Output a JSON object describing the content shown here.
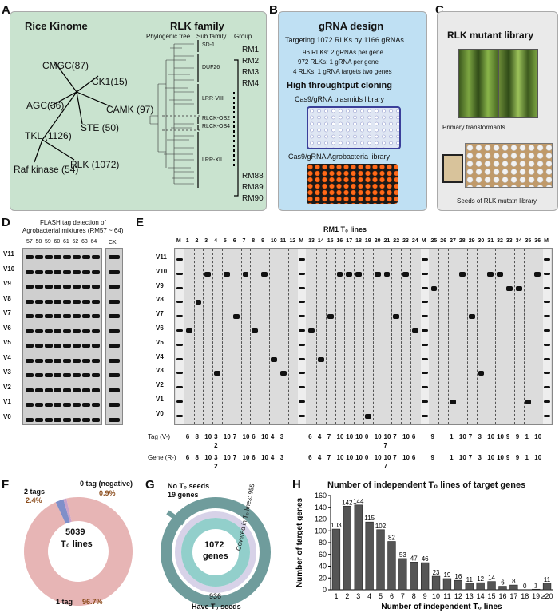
{
  "panel_labels": {
    "a": "A",
    "b": "B",
    "c": "C",
    "d": "D",
    "e": "E",
    "f": "F",
    "g": "G",
    "h": "H"
  },
  "panelA": {
    "title_kinome": "Rice Kinome",
    "title_rlk": "RLK family",
    "tree_labels": [
      "CMGC(87)",
      "AGC(36)",
      "CK1(15)",
      "STE (50)",
      "CAMK (97)",
      "TKL (1126)",
      "Raf kinase (54)",
      "RLK (1072)"
    ],
    "col_headers": [
      "Phylogenic tree",
      "Sub family",
      "Group"
    ],
    "subfamilies": [
      "SD-1",
      "DUF26",
      "LRR-VIII",
      "RLCK-OS2",
      "RLCK-OS4",
      "LRR-XII"
    ],
    "groups_top": [
      "RM1",
      "RM2",
      "RM3",
      "RM4"
    ],
    "groups_bottom": [
      "RM88",
      "RM89",
      "RM90"
    ]
  },
  "panelB": {
    "title": "gRNA design",
    "line1": "Targeting 1072 RLKs by 1166 gRNAs",
    "line2": "96 RLKs: 2 gRNAs per gene",
    "line3": "972 RLKs: 1 gRNA  per gene",
    "line4": "4 RLKs: 1 gRNA  targets two genes",
    "title2": "High throughtput cloning",
    "plasmid_label": "Cas9/gRNA plasmids library",
    "agro_label": "Cas9/gRNA Agrobacteria library"
  },
  "panelC": {
    "title": "RLK mutant library",
    "primary": "Primary transformants",
    "seeds": "Seeds of RLK mutatn library"
  },
  "panelD": {
    "title1": "FLASH tag detection of",
    "title2": "Agrobacterial mixtures (RM57 ~ 64)",
    "lanes": [
      "57",
      "58",
      "59",
      "60",
      "61",
      "62",
      "63",
      "64"
    ],
    "ck": "CK",
    "rows": [
      "V11",
      "V10",
      "V9",
      "V8",
      "V7",
      "V6",
      "V5",
      "V4",
      "V3",
      "V2",
      "V1",
      "V0"
    ]
  },
  "panelE": {
    "title": "RM1 T₀ lines",
    "lanes": [
      "M",
      "1",
      "2",
      "3",
      "4",
      "5",
      "6",
      "7",
      "8",
      "9",
      "10",
      "11",
      "12",
      "M",
      "13",
      "14",
      "15",
      "16",
      "17",
      "18",
      "19",
      "20",
      "21",
      "22",
      "23",
      "24",
      "M",
      "25",
      "26",
      "27",
      "28",
      "29",
      "30",
      "31",
      "32",
      "33",
      "34",
      "35",
      "36",
      "M"
    ],
    "rows": [
      "V11",
      "V10",
      "V9",
      "V8",
      "V7",
      "V6",
      "V5",
      "V4",
      "V3",
      "V2",
      "V1",
      "V0"
    ],
    "tag_label": "Tag (V-)",
    "gene_label": "Gene (R-)",
    "tag_values": [
      "6",
      "8",
      "10",
      "3",
      "10",
      "7",
      "10",
      "6",
      "10",
      "4",
      "3",
      "",
      "6",
      "4",
      "7",
      "10",
      "10",
      "10",
      "0",
      "10",
      "10",
      "7",
      "10",
      "6",
      "9",
      "",
      "1",
      "10",
      "7",
      "3",
      "10",
      "10",
      "9",
      "9",
      "1",
      "10",
      "2",
      "10"
    ],
    "gene_values": [
      "6",
      "8",
      "10",
      "3",
      "10",
      "7",
      "10",
      "6",
      "10",
      "4",
      "3",
      "",
      "6",
      "4",
      "7",
      "10",
      "10",
      "10",
      "0",
      "10",
      "10",
      "7",
      "10",
      "6",
      "9",
      "",
      "1",
      "10",
      "7",
      "3",
      "10",
      "10",
      "9",
      "9",
      "1",
      "10",
      "2",
      "10"
    ],
    "sub_values": [
      "2",
      "2",
      "7",
      "7"
    ]
  },
  "panelF": {
    "center1": "5039",
    "center2": "T₀ lines",
    "slices": [
      {
        "label": "1 tag",
        "pct": "96.7%",
        "value": 96.7,
        "color": "#e7b5b5"
      },
      {
        "label": "2 tags",
        "pct": "2.4%",
        "value": 2.4,
        "color": "#7f8fc9"
      },
      {
        "label": "0 tag (negative)",
        "pct": "0.9%",
        "value": 0.9,
        "color": "#c9a2c9"
      }
    ]
  },
  "panelG": {
    "center1": "1072",
    "center2": "genes",
    "covered": "Covered in T₀ lines: 955",
    "no_seeds_1": "No T₀ seeds",
    "no_seeds_2": "19 genes",
    "have_value": "936",
    "have_label": "Have T₀ seeds"
  },
  "chart_data": {
    "type": "bar",
    "title": "Number of independent T₀ lines of target genes",
    "xlabel": "Number of independent T₀ lines",
    "ylabel": "Number of target genes",
    "categories": [
      "1",
      "2",
      "3",
      "4",
      "5",
      "6",
      "7",
      "8",
      "9",
      "10",
      "11",
      "12",
      "13",
      "14",
      "15",
      "16",
      "17",
      "18",
      "19",
      "≥20"
    ],
    "values": [
      103,
      142,
      144,
      115,
      102,
      82,
      53,
      47,
      46,
      23,
      19,
      16,
      11,
      12,
      14,
      6,
      8,
      0,
      1,
      11
    ],
    "ylim": [
      0,
      160
    ],
    "yticks": [
      "0",
      "20",
      "40",
      "60",
      "80",
      "100",
      "120",
      "140",
      "160"
    ]
  }
}
